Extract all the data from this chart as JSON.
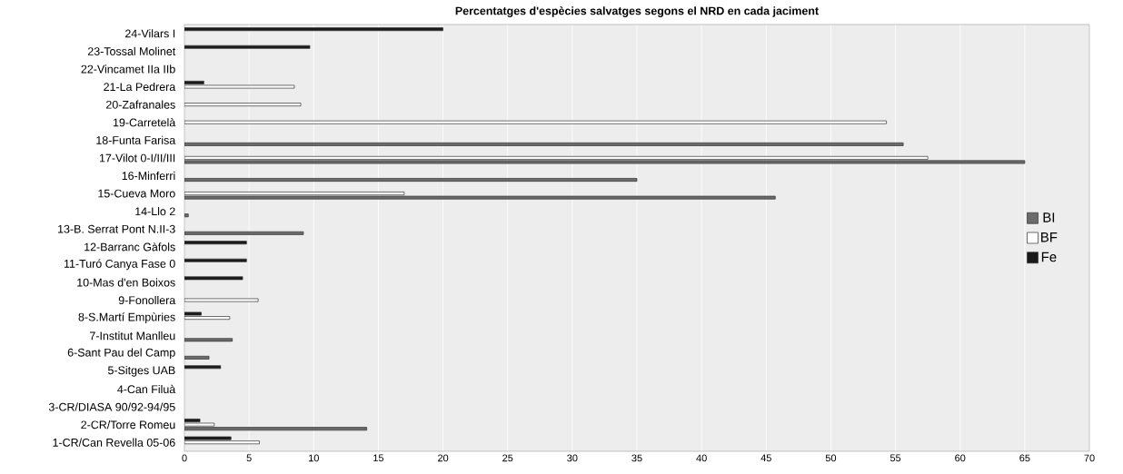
{
  "chart_data": {
    "type": "bar",
    "orientation": "horizontal",
    "title": "Percentatges d'espècies salvatges segons el NRD en cada jaciment",
    "categories": [
      "24-Vilars I",
      "23-Tossal Molinet",
      "22-Vincamet IIa IIb",
      "21-La Pedrera",
      "20-Zafranales",
      "19-Carretelà",
      "18-Funta Farisa",
      "17-Vilot 0-I/II/III",
      "16-Minferri",
      "15-Cueva Moro",
      "14-Llo 2",
      "13-B. Serrat Pont N.II-3",
      "12-Barranc Gàfols",
      "11-Turó  Canya Fase 0",
      "10-Mas d'en Boixos",
      "9-Fonollera",
      "8-S.Martí Empùries",
      "7-Institut Manlleu",
      "6-Sant Pau del Camp",
      "5-Sitges UAB",
      "4-Can Filuà",
      "3-CR/DIASA 90/92-94/95",
      "2-CR/Torre Romeu",
      "1-CR/Can Revella 05-06"
    ],
    "series": [
      {
        "name": "BI",
        "color": "#6b6b6b",
        "values": [
          null,
          null,
          null,
          null,
          null,
          null,
          55.6,
          65,
          35,
          45.7,
          0.3,
          9.2,
          null,
          null,
          null,
          null,
          null,
          3.7,
          1.9,
          null,
          null,
          null,
          14.1,
          null
        ]
      },
      {
        "name": "BF",
        "color": "#ffffff",
        "values": [
          null,
          null,
          null,
          8.5,
          9.0,
          54.3,
          null,
          57.5,
          null,
          17,
          null,
          null,
          null,
          null,
          null,
          5.7,
          3.5,
          null,
          null,
          null,
          null,
          null,
          2.3,
          5.8
        ]
      },
      {
        "name": "Fe",
        "color": "#1a1a1a",
        "values": [
          20,
          9.7,
          null,
          1.5,
          null,
          null,
          null,
          null,
          null,
          null,
          null,
          null,
          4.8,
          4.8,
          4.5,
          null,
          1.3,
          null,
          null,
          2.8,
          null,
          null,
          1.2,
          3.6
        ]
      }
    ],
    "xlim": [
      0,
      70
    ],
    "xticks": [
      0,
      5,
      10,
      15,
      20,
      25,
      30,
      35,
      40,
      45,
      50,
      55,
      60,
      65,
      70
    ],
    "grid": "x",
    "legend": "right"
  }
}
